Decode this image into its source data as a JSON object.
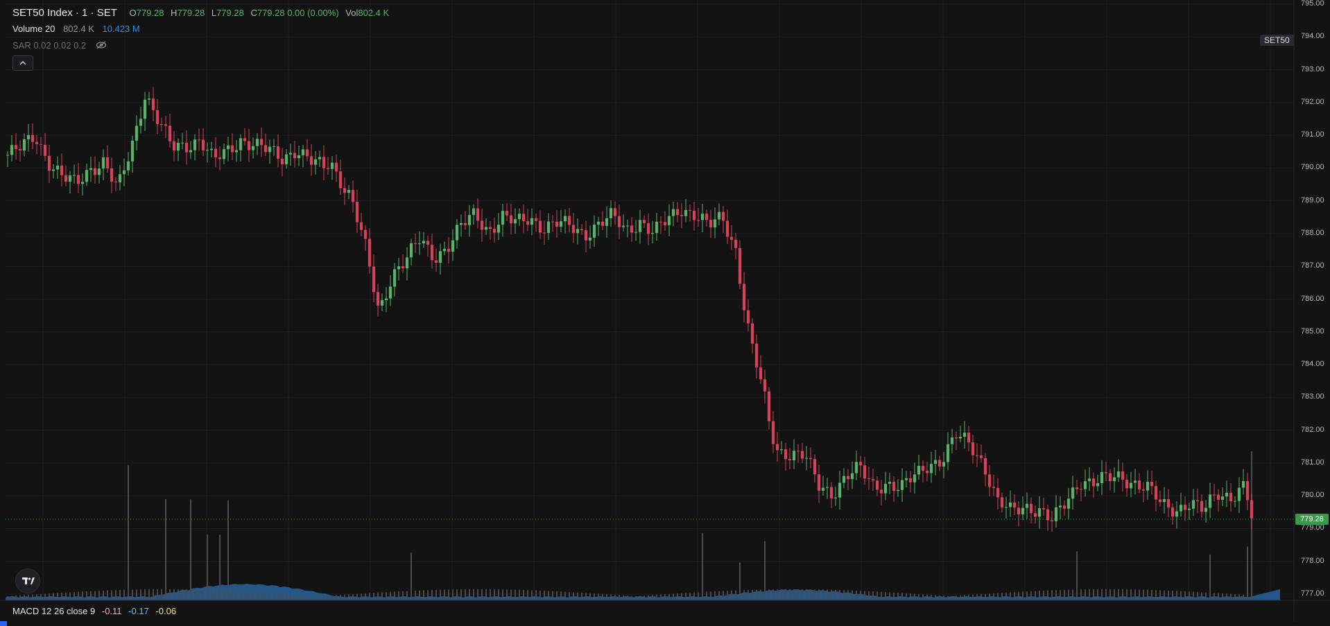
{
  "legend": {
    "title": "SET50 Index · 1 · SET",
    "o_label": "O",
    "o_value": "779.28",
    "h_label": "H",
    "h_value": "779.28",
    "l_label": "L",
    "l_value": "779.28",
    "c_label": "C",
    "c_value": "779.28 0.00 (0.00%)",
    "vol_label": "Vol",
    "vol_value": "802.4 K"
  },
  "volume_indicator": {
    "name": "Volume 20",
    "value_a": "802.4 K",
    "value_b": "10.423 M"
  },
  "sar_indicator": {
    "name": "SAR 0.02 0.02 0.2",
    "eye_icon": "eye-off-icon"
  },
  "collapse_icon": "chevron-up-icon",
  "symbol_badge": "SET50",
  "current_price_label": "779.28",
  "price_axis": {
    "ticks": [
      "795.00",
      "794.00",
      "793.00",
      "792.00",
      "791.00",
      "790.00",
      "789.00",
      "788.00",
      "787.00",
      "786.00",
      "785.00",
      "784.00",
      "783.00",
      "782.00",
      "781.00",
      "780.00",
      "779.00",
      "778.00",
      "777.00"
    ]
  },
  "macd": {
    "name": "MACD 12 26 close 9",
    "macd_value": "-0.11",
    "signal_value": "-0.17",
    "hist_value": "-0.06"
  },
  "colors": {
    "up": "#57b36a",
    "down": "#d8415a",
    "volume": "#2a6fb0",
    "volume_bar": "#4a4b50"
  },
  "chart_data": {
    "type": "candlestick",
    "y_range": [
      777.0,
      795.0
    ],
    "close_series_keypoints": [
      [
        0,
        790.4
      ],
      [
        20,
        790.6
      ],
      [
        40,
        791.0
      ],
      [
        60,
        790.2
      ],
      [
        80,
        789.7
      ],
      [
        100,
        789.5
      ],
      [
        120,
        790.0
      ],
      [
        140,
        790.2
      ],
      [
        160,
        789.3
      ],
      [
        180,
        790.6
      ],
      [
        200,
        792.3
      ],
      [
        220,
        791.4
      ],
      [
        240,
        790.6
      ],
      [
        260,
        790.7
      ],
      [
        280,
        790.9
      ],
      [
        300,
        790.2
      ],
      [
        320,
        790.5
      ],
      [
        340,
        790.9
      ],
      [
        360,
        790.7
      ],
      [
        380,
        790.5
      ],
      [
        400,
        790.3
      ],
      [
        420,
        790.6
      ],
      [
        440,
        790.2
      ],
      [
        460,
        790.0
      ],
      [
        470,
        790.2
      ],
      [
        480,
        789.8
      ],
      [
        500,
        789.1
      ],
      [
        520,
        787.6
      ],
      [
        540,
        785.6
      ],
      [
        560,
        786.8
      ],
      [
        580,
        787.2
      ],
      [
        600,
        787.8
      ],
      [
        620,
        787.3
      ],
      [
        640,
        787.6
      ],
      [
        660,
        788.2
      ],
      [
        680,
        788.6
      ],
      [
        700,
        788.1
      ],
      [
        720,
        788.5
      ],
      [
        740,
        788.3
      ],
      [
        760,
        788.5
      ],
      [
        780,
        788.2
      ],
      [
        800,
        788.3
      ],
      [
        820,
        788.2
      ],
      [
        840,
        788.0
      ],
      [
        860,
        788.3
      ],
      [
        880,
        788.5
      ],
      [
        900,
        788.1
      ],
      [
        920,
        788.4
      ],
      [
        940,
        788.0
      ],
      [
        960,
        788.4
      ],
      [
        980,
        788.8
      ],
      [
        1000,
        788.6
      ],
      [
        1020,
        788.2
      ],
      [
        1040,
        788.5
      ],
      [
        1060,
        787.5
      ],
      [
        1070,
        786.0
      ],
      [
        1080,
        784.8
      ],
      [
        1100,
        783.1
      ],
      [
        1110,
        782.0
      ],
      [
        1120,
        781.4
      ],
      [
        1140,
        781.3
      ],
      [
        1160,
        781.2
      ],
      [
        1180,
        780.3
      ],
      [
        1200,
        780.1
      ],
      [
        1220,
        780.6
      ],
      [
        1240,
        780.8
      ],
      [
        1260,
        780.3
      ],
      [
        1280,
        780.4
      ],
      [
        1300,
        780.2
      ],
      [
        1320,
        780.6
      ],
      [
        1340,
        781.0
      ],
      [
        1360,
        781.1
      ],
      [
        1380,
        781.8
      ],
      [
        1400,
        781.6
      ],
      [
        1420,
        781.0
      ],
      [
        1440,
        779.8
      ],
      [
        1460,
        779.5
      ],
      [
        1480,
        779.7
      ],
      [
        1500,
        779.6
      ],
      [
        1520,
        779.2
      ],
      [
        1540,
        779.8
      ],
      [
        1560,
        780.5
      ],
      [
        1580,
        780.4
      ],
      [
        1600,
        780.5
      ],
      [
        1620,
        780.6
      ],
      [
        1640,
        780.4
      ],
      [
        1660,
        780.2
      ],
      [
        1680,
        779.7
      ],
      [
        1700,
        779.6
      ],
      [
        1720,
        779.8
      ],
      [
        1740,
        779.5
      ],
      [
        1760,
        780.1
      ],
      [
        1780,
        780.0
      ],
      [
        1800,
        780.3
      ],
      [
        1810,
        779.3
      ]
    ],
    "last_price": 779.28
  }
}
